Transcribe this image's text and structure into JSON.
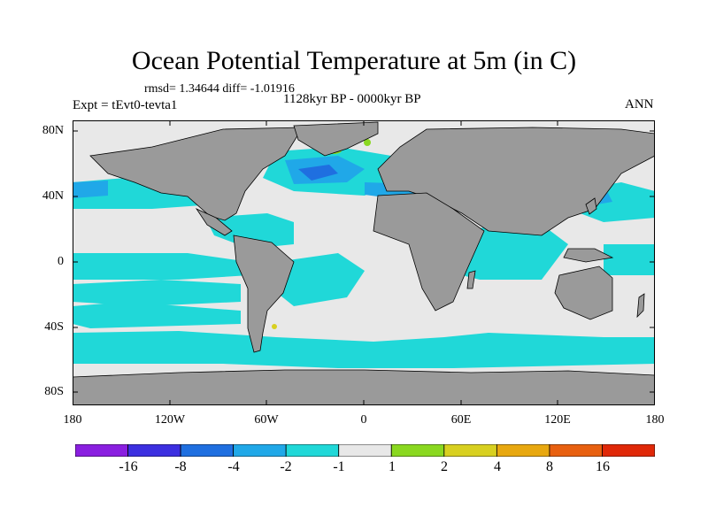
{
  "title": "Ocean Potential Temperature at 5m (in C)",
  "stats": "rmsd= 1.34644 diff= -1.01916",
  "experiment": "Expt = tEvt0-tevta1",
  "period": "1128kyr BP - 0000kyr BP",
  "season": "ANN",
  "y_axis": {
    "ticks": [
      {
        "label": "80N",
        "lat": 80
      },
      {
        "label": "40N",
        "lat": 40
      },
      {
        "label": "0",
        "lat": 0
      },
      {
        "label": "40S",
        "lat": -40
      },
      {
        "label": "80S",
        "lat": -80
      }
    ]
  },
  "x_axis": {
    "ticks": [
      {
        "label": "180",
        "lon": -180
      },
      {
        "label": "120W",
        "lon": -120
      },
      {
        "label": "60W",
        "lon": -60
      },
      {
        "label": "0",
        "lon": 0
      },
      {
        "label": "60E",
        "lon": 60
      },
      {
        "label": "120E",
        "lon": 120
      },
      {
        "label": "180",
        "lon": 180
      }
    ]
  },
  "colorbar": {
    "colors": [
      "#8a1fe0",
      "#3c2fe0",
      "#1f6fe0",
      "#20a8e8",
      "#20d8d8",
      "#e8e8e8",
      "#8ad820",
      "#d8d020",
      "#e8a810",
      "#e86010",
      "#e02808"
    ],
    "labels": [
      "-16",
      "-8",
      "-4",
      "-2",
      "-1",
      "1",
      "2",
      "4",
      "8",
      "16"
    ]
  },
  "colors": {
    "land": "#9a9a9a",
    "coast": "#000000",
    "neutral": "#e8e8e8",
    "cyan": "#20d8d8",
    "light_blue": "#20a8e8",
    "blue": "#1f6fe0",
    "green": "#8ad820",
    "yellow": "#d8d020"
  }
}
